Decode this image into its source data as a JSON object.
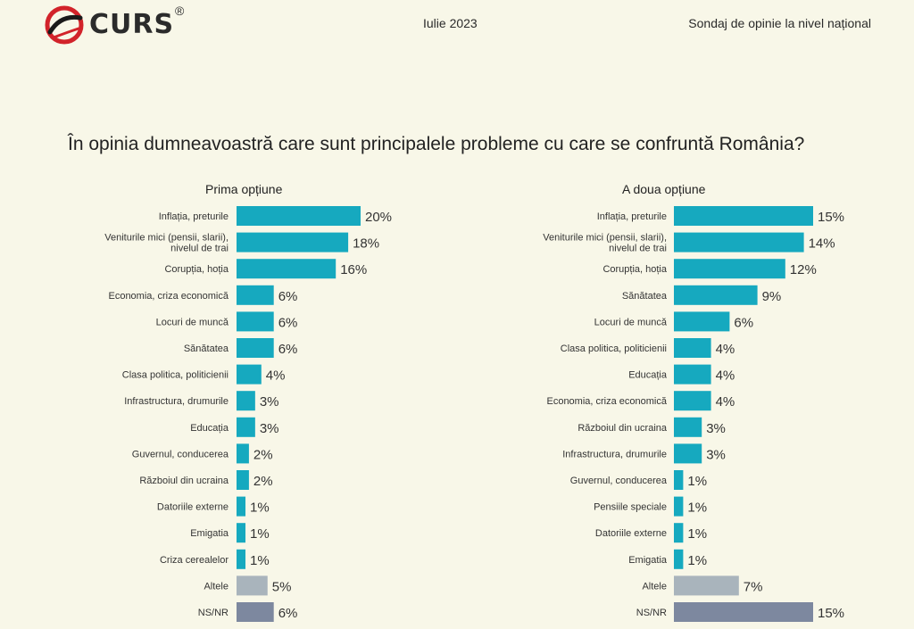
{
  "header": {
    "brand": "CURS",
    "registered_mark": "®",
    "date": "Iulie 2023",
    "survey": "Sondaj de opinie la nivel național"
  },
  "question": "În opinia dumneavoastră care sunt principalele probleme cu care se confruntă România?",
  "colors": {
    "primary_bar": "#16a9bf",
    "other_bar": "#a9b4bc",
    "nsnr_bar": "#7d889f",
    "background": "#f8f7e8",
    "logo_red": "#d2232a"
  },
  "chart_data": [
    {
      "type": "bar",
      "orientation": "horizontal",
      "title": "Prima opțiune",
      "unit": "%",
      "xlim": [
        0,
        20
      ],
      "categories": [
        "Inflația, preturile",
        "Veniturile mici (pensii, slarii), nivelul de trai",
        "Corupția, hoția",
        "Economia, criza economică",
        "Locuri de muncă",
        "Sănătatea",
        "Clasa politica, politicienii",
        "Infrastructura, drumurile",
        "Educația",
        "Guvernul, conducerea",
        "Războiul din ucraina",
        "Datoriile externe",
        "Emigatia",
        "Criza cerealelor",
        "Altele",
        "NS/NR"
      ],
      "values": [
        20,
        18,
        16,
        6,
        6,
        6,
        4,
        3,
        3,
        2,
        2,
        1,
        1,
        1,
        5,
        6
      ],
      "value_labels": [
        "20%",
        "18%",
        "16%",
        "6%",
        "6%",
        "6%",
        "4%",
        "3%",
        "3%",
        "2%",
        "2%",
        "1%",
        "1%",
        "1%",
        "5%",
        "6%"
      ]
    },
    {
      "type": "bar",
      "orientation": "horizontal",
      "title": "A doua opțiune",
      "unit": "%",
      "xlim": [
        0,
        15
      ],
      "categories": [
        "Inflația, preturile",
        "Veniturile mici (pensii, slarii), nivelul de trai",
        "Corupția, hoția",
        "Sănătatea",
        "Locuri de muncă",
        "Clasa politica, politicienii",
        "Educația",
        "Economia, criza economică",
        "Războiul din ucraina",
        "Infrastructura, drumurile",
        "Guvernul, conducerea",
        "Pensiile speciale",
        "Datoriile externe",
        "Emigatia",
        "Altele",
        "NS/NR"
      ],
      "values": [
        15,
        14,
        12,
        9,
        6,
        4,
        4,
        4,
        3,
        3,
        1,
        1,
        1,
        1,
        7,
        15
      ],
      "value_labels": [
        "15%",
        "14%",
        "12%",
        "9%",
        "6%",
        "4%",
        "4%",
        "4%",
        "3%",
        "3%",
        "1%",
        "1%",
        "1%",
        "1%",
        "7%",
        "15%"
      ]
    }
  ]
}
